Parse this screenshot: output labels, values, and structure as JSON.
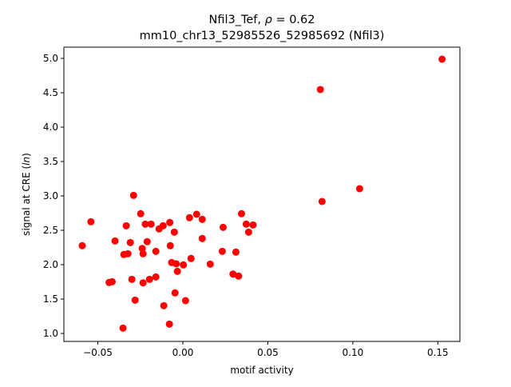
{
  "chart_data": {
    "type": "scatter",
    "title_line1_prefix": "Nfil3_Tef, ",
    "title_rho_symbol": "ρ",
    "title_rho_value": " = 0.62",
    "title_line2": "mm10_chr13_52985526_52985692 (Nfil3)",
    "xlabel": "motif activity",
    "ylabel_prefix": "signal at CRE (",
    "ylabel_italic": "ln",
    "ylabel_suffix": ")",
    "xlim": [
      -0.07,
      0.163
    ],
    "ylim": [
      0.884,
      5.163
    ],
    "xticks": [
      -0.05,
      0.0,
      0.05,
      0.1,
      0.15
    ],
    "xtick_labels": [
      "−0.05",
      "0.00",
      "0.05",
      "0.10",
      "0.15"
    ],
    "yticks": [
      1.0,
      1.5,
      2.0,
      2.5,
      3.0,
      3.5,
      4.0,
      4.5,
      5.0
    ],
    "ytick_labels": [
      "1.0",
      "1.5",
      "2.0",
      "2.5",
      "3.0",
      "3.5",
      "4.0",
      "4.5",
      "5.0"
    ],
    "grid": false,
    "marker_color": "#ff0000",
    "points": [
      [
        -0.029,
        3.008
      ],
      [
        -0.0541,
        2.624
      ],
      [
        -0.0592,
        2.276
      ],
      [
        -0.0248,
        2.741
      ],
      [
        -0.0333,
        2.566
      ],
      [
        -0.0221,
        2.589
      ],
      [
        -0.0187,
        2.589
      ],
      [
        -0.014,
        2.52
      ],
      [
        -0.0116,
        2.566
      ],
      [
        -0.0077,
        2.613
      ],
      [
        -0.005,
        2.473
      ],
      [
        0.0039,
        2.683
      ],
      [
        0.0081,
        2.733
      ],
      [
        0.0114,
        2.659
      ],
      [
        0.0114,
        2.38
      ],
      [
        0.0237,
        2.543
      ],
      [
        0.0345,
        2.741
      ],
      [
        0.0373,
        2.59
      ],
      [
        0.0413,
        2.578
      ],
      [
        0.0387,
        2.473
      ],
      [
        -0.0399,
        2.345
      ],
      [
        -0.0309,
        2.322
      ],
      [
        -0.021,
        2.334
      ],
      [
        -0.0239,
        2.236
      ],
      [
        -0.0234,
        2.159
      ],
      [
        -0.0347,
        2.148
      ],
      [
        -0.0323,
        2.159
      ],
      [
        -0.0159,
        2.194
      ],
      [
        -0.0074,
        2.276
      ],
      [
        -0.0066,
        2.031
      ],
      [
        -0.0039,
        2.012
      ],
      [
        0.0003,
        1.997
      ],
      [
        -0.0032,
        1.903
      ],
      [
        0.0048,
        2.09
      ],
      [
        0.0161,
        2.008
      ],
      [
        0.0232,
        2.194
      ],
      [
        0.0312,
        2.183
      ],
      [
        0.0295,
        1.864
      ],
      [
        0.0328,
        1.834
      ],
      [
        -0.0434,
        1.741
      ],
      [
        -0.0416,
        1.752
      ],
      [
        -0.03,
        1.787
      ],
      [
        -0.0234,
        1.736
      ],
      [
        -0.0196,
        1.787
      ],
      [
        -0.0159,
        1.822
      ],
      [
        -0.0046,
        1.59
      ],
      [
        -0.0281,
        1.485
      ],
      [
        -0.0112,
        1.403
      ],
      [
        0.0016,
        1.477
      ],
      [
        -0.0352,
        1.078
      ],
      [
        -0.0079,
        1.136
      ],
      [
        0.0809,
        4.547
      ],
      [
        0.0819,
        2.919
      ],
      [
        0.104,
        3.105
      ],
      [
        0.1525,
        4.988
      ]
    ]
  }
}
